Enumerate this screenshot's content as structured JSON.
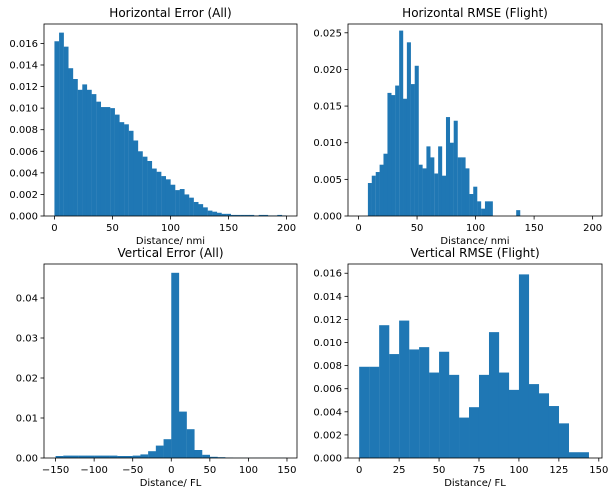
{
  "chart_data": [
    {
      "type": "bar",
      "title": "Horizontal Error (All)",
      "xlabel": "Distance/ nmi",
      "ylabel": "",
      "bar_color": "#1f77b4",
      "xlim": [
        -9,
        209
      ],
      "ylim": [
        0,
        0.0178
      ],
      "xticks": [
        0,
        50,
        100,
        150,
        200
      ],
      "xtick_labels": [
        "0",
        "50",
        "100",
        "150",
        "200"
      ],
      "yticks": [
        0,
        0.002,
        0.004,
        0.006,
        0.008,
        0.01,
        0.012,
        0.014,
        0.016
      ],
      "ytick_labels": [
        "0.000",
        "0.002",
        "0.004",
        "0.006",
        "0.008",
        "0.010",
        "0.012",
        "0.014",
        "0.016"
      ],
      "bin_width": 4,
      "x": [
        0,
        4,
        8,
        12,
        16,
        20,
        24,
        28,
        32,
        36,
        40,
        44,
        48,
        52,
        56,
        60,
        64,
        68,
        72,
        76,
        80,
        84,
        88,
        92,
        96,
        100,
        104,
        108,
        112,
        116,
        120,
        124,
        128,
        132,
        136,
        140,
        144,
        148,
        152,
        156,
        160,
        164,
        168,
        172,
        176,
        180,
        184,
        188,
        192,
        196
      ],
      "values": [
        0.0162,
        0.017,
        0.0157,
        0.0137,
        0.0127,
        0.0117,
        0.0122,
        0.0117,
        0.0113,
        0.0106,
        0.0101,
        0.0101,
        0.01,
        0.0094,
        0.0087,
        0.0085,
        0.0079,
        0.007,
        0.006,
        0.0055,
        0.0051,
        0.0044,
        0.0041,
        0.0037,
        0.0034,
        0.0029,
        0.0024,
        0.0025,
        0.002,
        0.0017,
        0.0013,
        0.0011,
        0.0008,
        0.0005,
        0.0004,
        0.0003,
        0.0002,
        0.0002,
        0.0001,
        0.0001,
        0.0001,
        0.0001,
        0.0001,
        5e-05,
        0.0001,
        0.0001,
        5e-05,
        5e-05,
        0.0001,
        5e-05
      ]
    },
    {
      "type": "bar",
      "title": "Horizontal RMSE (Flight)",
      "xlabel": "Distance/ nmi",
      "ylabel": "",
      "bar_color": "#1f77b4",
      "xlim": [
        -9,
        208
      ],
      "ylim": [
        0,
        0.0262
      ],
      "xticks": [
        0,
        50,
        100,
        150,
        200
      ],
      "xtick_labels": [
        "0",
        "50",
        "100",
        "150",
        "200"
      ],
      "yticks": [
        0,
        0.005,
        0.01,
        0.015,
        0.02,
        0.025
      ],
      "ytick_labels": [
        "0.000",
        "0.005",
        "0.010",
        "0.015",
        "0.020",
        "0.025"
      ],
      "bin_width": 3.33,
      "x": [
        8,
        11.3,
        14.7,
        18,
        21.3,
        24.7,
        28,
        31.3,
        34.7,
        38,
        41.3,
        44.7,
        48,
        51.3,
        54.7,
        58,
        61.3,
        64.7,
        68,
        71.3,
        74.7,
        78,
        81.3,
        84.7,
        88,
        91.3,
        94.7,
        98,
        101.3,
        104.7,
        108,
        111.3,
        134.7
      ],
      "values": [
        0.0045,
        0.0055,
        0.006,
        0.007,
        0.0085,
        0.0168,
        0.0165,
        0.0178,
        0.0253,
        0.016,
        0.0237,
        0.018,
        0.0205,
        0.007,
        0.0065,
        0.0095,
        0.008,
        0.0058,
        0.0095,
        0.0055,
        0.0135,
        0.01,
        0.013,
        0.008,
        0.008,
        0.0065,
        0.003,
        0.004,
        0.002,
        0.001,
        0.002,
        0.002,
        0.0008
      ]
    },
    {
      "type": "bar",
      "title": "Vertical Error (All)",
      "xlabel": "Distance/ FL",
      "ylabel": "",
      "bar_color": "#1f77b4",
      "xlim": [
        -165,
        163
      ],
      "ylim": [
        0,
        0.0485
      ],
      "xticks": [
        -150,
        -100,
        -50,
        0,
        50,
        100,
        150
      ],
      "xtick_labels": [
        "−150",
        "−100",
        "−50",
        "0",
        "50",
        "100",
        "150"
      ],
      "yticks": [
        0,
        0.01,
        0.02,
        0.03,
        0.04
      ],
      "ytick_labels": [
        "0.00",
        "0.01",
        "0.02",
        "0.03",
        "0.04"
      ],
      "bin_width": 10,
      "x": [
        -150,
        -140,
        -130,
        -120,
        -110,
        -100,
        -90,
        -80,
        -70,
        -60,
        -50,
        -40,
        -30,
        -20,
        -10,
        0,
        10,
        20,
        30,
        40,
        50,
        60,
        70,
        80,
        90,
        100,
        110,
        120,
        130,
        140
      ],
      "values": [
        0.0005,
        0.0006,
        0.0006,
        0.0006,
        0.0006,
        0.0006,
        0.0006,
        0.0006,
        0.0005,
        0.0005,
        0.0006,
        0.0009,
        0.0017,
        0.0031,
        0.0047,
        0.0463,
        0.0116,
        0.0072,
        0.002,
        0.0008,
        0.0003,
        0.0002,
        0.0001,
        5e-05,
        5e-05,
        5e-05,
        5e-05,
        5e-05,
        5e-05,
        5e-05
      ]
    },
    {
      "type": "bar",
      "title": "Vertical RMSE (Flight)",
      "xlabel": "Distance/ FL",
      "ylabel": "",
      "bar_color": "#1f77b4",
      "xlim": [
        -7,
        152
      ],
      "ylim": [
        0,
        0.0168
      ],
      "xticks": [
        0,
        25,
        50,
        75,
        100,
        125,
        150
      ],
      "xtick_labels": [
        "0",
        "25",
        "50",
        "75",
        "100",
        "125",
        "150"
      ],
      "yticks": [
        0,
        0.002,
        0.004,
        0.006,
        0.008,
        0.01,
        0.012,
        0.014,
        0.016
      ],
      "ytick_labels": [
        "0.000",
        "0.002",
        "0.004",
        "0.006",
        "0.008",
        "0.010",
        "0.012",
        "0.014",
        "0.016"
      ],
      "bin_width": 6.25,
      "x": [
        0,
        6.25,
        12.5,
        18.75,
        25,
        31.25,
        37.5,
        43.75,
        50,
        56.25,
        62.5,
        68.75,
        75,
        81.25,
        87.5,
        93.75,
        100,
        106.25,
        112.5,
        118.75,
        125,
        131.25,
        137.5
      ],
      "values": [
        0.0079,
        0.0079,
        0.0115,
        0.009,
        0.0119,
        0.0094,
        0.0096,
        0.0074,
        0.0092,
        0.0072,
        0.0035,
        0.0044,
        0.0072,
        0.0109,
        0.0074,
        0.0059,
        0.0159,
        0.0064,
        0.0056,
        0.0045,
        0.003,
        0.0005,
        0.0005
      ]
    }
  ]
}
